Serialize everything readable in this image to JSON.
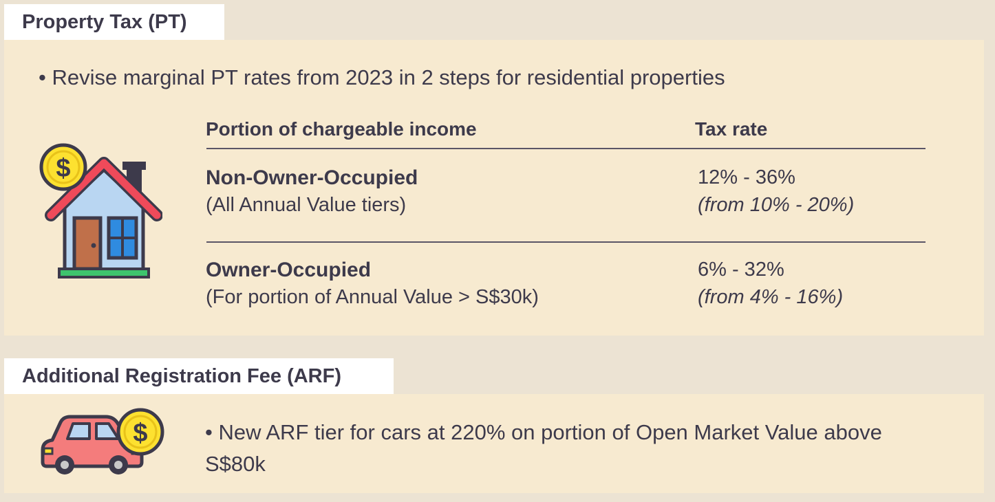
{
  "property_tax": {
    "tab_label": "Property Tax (PT)",
    "bullet": "• Revise marginal PT rates from 2023 in 2 steps for residential properties",
    "table": {
      "headers": {
        "portion": "Portion of chargeable income",
        "rate": "Tax rate"
      },
      "rows": [
        {
          "title": "Non-Owner-Occupied",
          "subtitle": "(All Annual Value tiers)",
          "rate": "12% - 36%",
          "previous": "(from 10% - 20%)"
        },
        {
          "title": "Owner-Occupied",
          "subtitle": "(For portion of Annual Value > S$30k)",
          "rate": "6% - 32%",
          "previous": "(from 4% - 16%)"
        }
      ]
    },
    "icon": "house-with-dollar-coin-icon"
  },
  "arf": {
    "tab_label": "Additional Registration Fee (ARF)",
    "bullet": "• New ARF tier for cars at 220% on portion of Open Market Value above S$80k",
    "icon": "car-with-dollar-coin-icon"
  },
  "colors": {
    "background": "#ece3d3",
    "panel": "#f7ead0",
    "tab": "#ffffff",
    "text": "#3d3a4b",
    "coin": "#fde130",
    "roof": "#ef4a5a",
    "car": "#f47c7c"
  }
}
